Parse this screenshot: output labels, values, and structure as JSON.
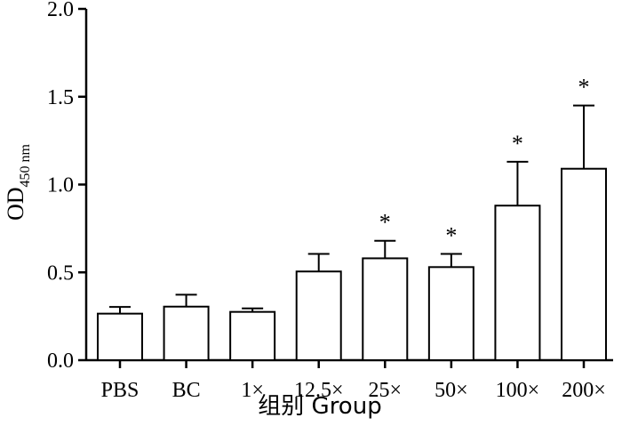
{
  "chart_data": {
    "type": "bar",
    "categories": [
      "PBS",
      "BC",
      "1×",
      "12.5×",
      "25×",
      "50×",
      "100×",
      "200×"
    ],
    "values": [
      0.265,
      0.305,
      0.275,
      0.505,
      0.58,
      0.53,
      0.88,
      1.09
    ],
    "errors": [
      0.038,
      0.068,
      0.02,
      0.1,
      0.1,
      0.075,
      0.25,
      0.36
    ],
    "significance": [
      "",
      "",
      "",
      "",
      "*",
      "*",
      "*",
      "*"
    ],
    "ylabel_main": "OD",
    "ylabel_sub": "450 nm",
    "xlabel": "组别  Group",
    "ylim": [
      0,
      2.0
    ],
    "yticks": [
      "0.0",
      "0.5",
      "1.0",
      "1.5",
      "2.0"
    ],
    "bar_fill": "#ffffff",
    "line_color": "#000000"
  }
}
